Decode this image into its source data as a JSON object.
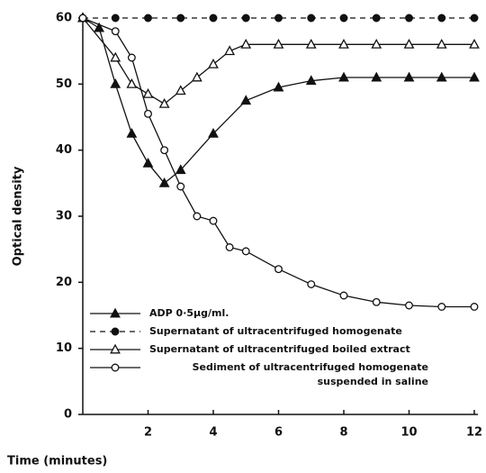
{
  "chart_data": {
    "type": "line",
    "x_label": "Time (minutes)",
    "y_label": "Optical density",
    "xlim": [
      0,
      12
    ],
    "ylim": [
      0,
      60
    ],
    "xticks": [
      2,
      4,
      6,
      8,
      10,
      12
    ],
    "yticks": [
      0,
      10,
      20,
      30,
      40,
      50,
      60
    ],
    "series": [
      {
        "name": "ADP 0·5µg/ml.",
        "color": "#111",
        "marker": "triangle",
        "filled": true,
        "dashed": false,
        "x": [
          0,
          0.5,
          1,
          1.5,
          2,
          2.5,
          3,
          4,
          5,
          6,
          7,
          8,
          9,
          10,
          11,
          12
        ],
        "values": [
          60,
          58.5,
          50,
          42.5,
          38,
          35,
          37,
          42.5,
          47.5,
          49.5,
          50.5,
          51,
          51,
          51,
          51,
          51
        ]
      },
      {
        "name": "Supernatant of ultracentrifuged homogenate",
        "color": "#111",
        "marker": "circle",
        "filled": true,
        "dashed": true,
        "x": [
          0,
          1,
          2,
          3,
          4,
          5,
          6,
          7,
          8,
          9,
          10,
          11,
          12
        ],
        "values": [
          60,
          60,
          60,
          60,
          60,
          60,
          60,
          60,
          60,
          60,
          60,
          60,
          60
        ]
      },
      {
        "name": "Supernatant of ultracentrifuged boiled extract",
        "color": "#111",
        "marker": "triangle",
        "filled": false,
        "dashed": false,
        "x": [
          0,
          1,
          1.5,
          2,
          2.5,
          3,
          3.5,
          4,
          4.5,
          5,
          6,
          7,
          8,
          9,
          10,
          11,
          12
        ],
        "values": [
          60,
          54,
          50,
          48.5,
          47,
          49,
          51,
          53,
          55,
          56,
          56,
          56,
          56,
          56,
          56,
          56,
          56
        ]
      },
      {
        "name": "Sediment of ultracentrifuged homogenate suspended in saline",
        "color": "#111",
        "marker": "circle",
        "filled": false,
        "dashed": false,
        "x": [
          0,
          1,
          1.5,
          2,
          2.5,
          3,
          3.5,
          4,
          4.5,
          5,
          6,
          7,
          8,
          9,
          10,
          11,
          12
        ],
        "values": [
          60,
          58,
          54,
          45.5,
          40,
          34.5,
          30,
          29.3,
          25.3,
          24.7,
          22,
          19.7,
          18,
          17,
          16.5,
          16.3,
          16.3
        ]
      }
    ]
  }
}
